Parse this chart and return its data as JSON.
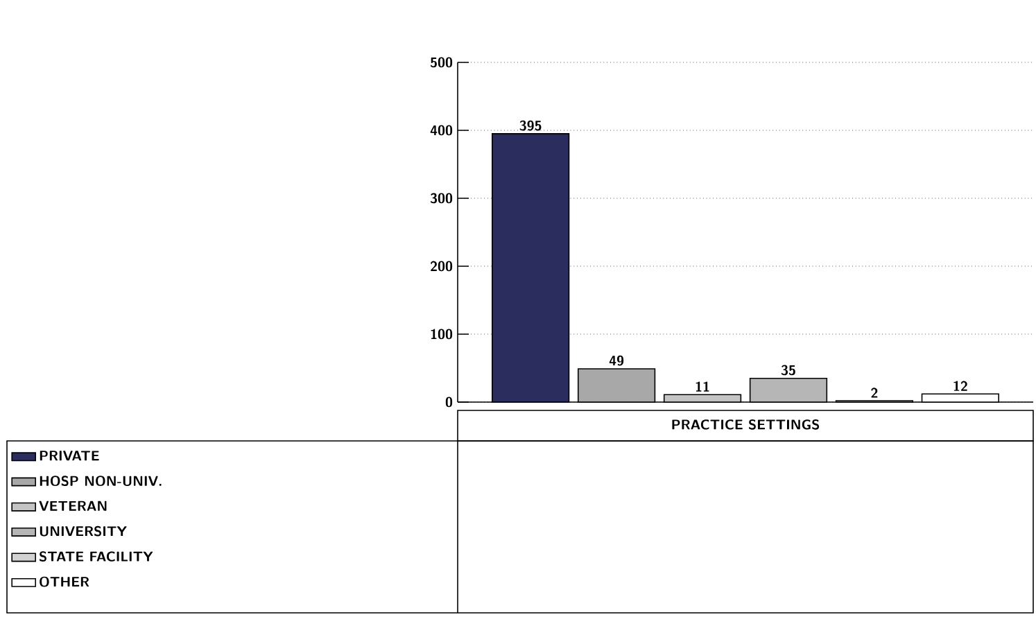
{
  "chart_data": {
    "type": "bar",
    "categories": [
      "PRACTICE SETTINGS"
    ],
    "series": [
      {
        "name": "PRIVATE",
        "color": "#2b2d5e",
        "values": [
          395
        ]
      },
      {
        "name": "HOSP NON-UNIV.",
        "color": "#a8a8a8",
        "values": [
          49
        ]
      },
      {
        "name": "VETERAN",
        "color": "#c4c4c4",
        "values": [
          11
        ]
      },
      {
        "name": "UNIVERSITY",
        "color": "#b6b6b6",
        "values": [
          35
        ]
      },
      {
        "name": "STATE FACILITY",
        "color": "#d2d2d2",
        "values": [
          2
        ]
      },
      {
        "name": "OTHER",
        "color": "#ffffff",
        "values": [
          12
        ]
      }
    ],
    "ylim": [
      0,
      500
    ],
    "yticks": [
      0,
      100,
      200,
      300,
      400,
      500
    ],
    "grid": "y",
    "legend": "bottom left",
    "data_labels": true
  }
}
